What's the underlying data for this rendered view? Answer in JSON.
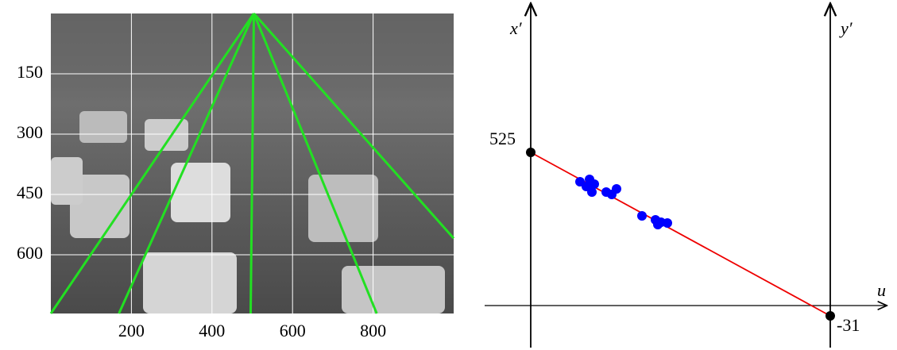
{
  "left_panel": {
    "xlim": [
      0,
      1000
    ],
    "ylim": [
      0,
      746
    ],
    "xticks": [
      200,
      400,
      600,
      800
    ],
    "yticks": [
      150,
      300,
      450,
      600
    ],
    "lines": [
      {
        "x1": 504,
        "y1": 0,
        "x2": 0,
        "y2": 746
      },
      {
        "x1": 504,
        "y1": 0,
        "x2": 169,
        "y2": 746
      },
      {
        "x1": 504,
        "y1": 0,
        "x2": 496,
        "y2": 746
      },
      {
        "x1": 504,
        "y1": 0,
        "x2": 809,
        "y2": 746
      },
      {
        "x1": 504,
        "y1": 0,
        "x2": 1000,
        "y2": 559
      }
    ]
  },
  "right_panel": {
    "left_axis_label": "x′",
    "right_axis_label": "y′",
    "horizontal_axis_label": "u",
    "left_value": "525",
    "right_value": "-31"
  }
}
